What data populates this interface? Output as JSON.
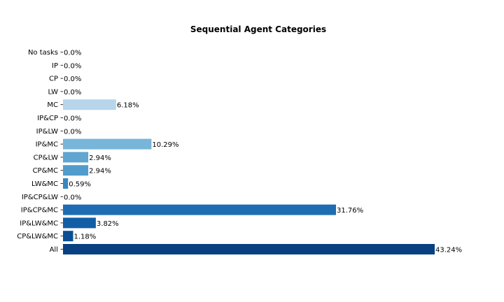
{
  "chart_data": {
    "type": "bar",
    "orientation": "horizontal",
    "title": "Sequential Agent Categories",
    "xlabel": "",
    "ylabel": "",
    "grid": false,
    "xlim": [
      0,
      46
    ],
    "categories": [
      "No tasks",
      "IP",
      "CP",
      "LW",
      "MC",
      "IP&CP",
      "IP&LW",
      "IP&MC",
      "CP&LW",
      "CP&MC",
      "LW&MC",
      "IP&CP&LW",
      "IP&CP&MC",
      "IP&LW&MC",
      "CP&LW&MC",
      "All"
    ],
    "values": [
      0.0,
      0.0,
      0.0,
      0.0,
      6.18,
      0.0,
      0.0,
      10.29,
      2.94,
      2.94,
      0.59,
      0.0,
      31.76,
      3.82,
      1.18,
      43.24
    ],
    "data_labels": [
      "0.0%",
      "0.0%",
      "0.0%",
      "0.0%",
      "6.18%",
      "0.0%",
      "0.0%",
      "10.29%",
      "2.94%",
      "2.94%",
      "0.59%",
      "0.0%",
      "31.76%",
      "3.82%",
      "1.18%",
      "43.24%"
    ],
    "colors": [
      "#f7fbff",
      "#eef5fc",
      "#e3eef9",
      "#d6e6f4",
      "#b8d5ea",
      "#a6cde4",
      "#8dc0dd",
      "#77b5d9",
      "#5fa6d1",
      "#519ccc",
      "#3787c0",
      "#2a7ab9",
      "#1e6db2",
      "#125ea6",
      "#0a4f94",
      "#084082"
    ]
  }
}
